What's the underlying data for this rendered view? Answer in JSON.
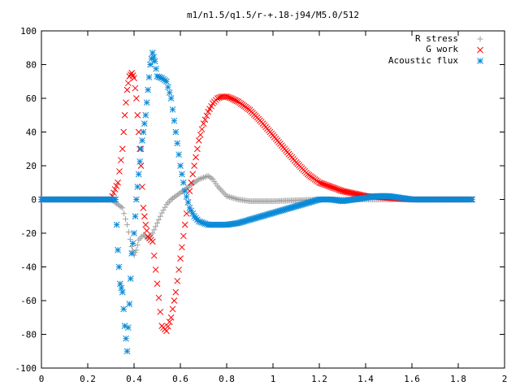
{
  "chart_data": {
    "type": "scatter",
    "title": "m1/n1.5/q1.5/r-+.18-j94/M5.0/512",
    "xlabel": "",
    "ylabel": "",
    "xlim": [
      0,
      2
    ],
    "ylim": [
      -100,
      100
    ],
    "x_ticks": [
      "0",
      "0.2",
      "0.4",
      "0.6",
      "0.8",
      "1",
      "1.2",
      "1.4",
      "1.6",
      "1.8",
      "2"
    ],
    "y_ticks": [
      "100",
      "80",
      "60",
      "40",
      "20",
      "0",
      "-20",
      "-40",
      "-60",
      "-80",
      "-100"
    ],
    "legend_position": "top-right",
    "grid": false,
    "series": [
      {
        "name": "R stress",
        "marker": "+",
        "color": "#a0a0a0",
        "x": [
          0.0,
          0.3,
          0.35,
          0.37,
          0.39,
          0.4,
          0.41,
          0.42,
          0.44,
          0.46,
          0.48,
          0.5,
          0.52,
          0.54,
          0.56,
          0.58,
          0.6,
          0.62,
          0.64,
          0.66,
          0.68,
          0.7,
          0.72,
          0.74,
          0.76,
          0.78,
          0.8,
          0.85,
          0.9,
          1.0,
          1.2,
          1.4,
          1.6,
          1.86
        ],
        "y": [
          0,
          0,
          -5,
          -15,
          -28,
          -33,
          -30,
          -24,
          -21,
          -23,
          -20,
          -14,
          -8,
          -3,
          0,
          2,
          4,
          6,
          8,
          10,
          12,
          13,
          14,
          12,
          8,
          5,
          2,
          0,
          -1,
          -1,
          0,
          0,
          0,
          0
        ]
      },
      {
        "name": "G work",
        "marker": "x",
        "color": "#ff0000",
        "x": [
          0.0,
          0.3,
          0.33,
          0.35,
          0.36,
          0.37,
          0.38,
          0.39,
          0.4,
          0.41,
          0.42,
          0.43,
          0.44,
          0.45,
          0.46,
          0.48,
          0.5,
          0.52,
          0.54,
          0.56,
          0.58,
          0.6,
          0.62,
          0.64,
          0.66,
          0.68,
          0.7,
          0.72,
          0.74,
          0.76,
          0.78,
          0.8,
          0.82,
          0.85,
          0.9,
          0.95,
          1.0,
          1.05,
          1.1,
          1.15,
          1.2,
          1.3,
          1.4,
          1.5,
          1.6,
          1.7,
          1.86
        ],
        "y": [
          0,
          0,
          10,
          30,
          50,
          65,
          73,
          75,
          72,
          60,
          40,
          20,
          -5,
          -15,
          -22,
          -25,
          -50,
          -75,
          -78,
          -70,
          -55,
          -35,
          -15,
          5,
          20,
          35,
          45,
          52,
          57,
          60,
          61,
          61,
          60,
          58,
          53,
          46,
          38,
          30,
          22,
          15,
          10,
          5,
          2,
          1,
          0,
          0,
          0
        ]
      },
      {
        "name": "Acoustic flux",
        "marker": "*",
        "color": "#0a8ad8",
        "x": [
          0.0,
          0.3,
          0.32,
          0.33,
          0.34,
          0.35,
          0.36,
          0.37,
          0.38,
          0.39,
          0.4,
          0.41,
          0.42,
          0.43,
          0.44,
          0.45,
          0.46,
          0.47,
          0.48,
          0.49,
          0.5,
          0.52,
          0.54,
          0.56,
          0.58,
          0.6,
          0.62,
          0.64,
          0.66,
          0.68,
          0.7,
          0.72,
          0.74,
          0.76,
          0.78,
          0.8,
          0.85,
          0.9,
          0.95,
          1.0,
          1.05,
          1.1,
          1.15,
          1.2,
          1.25,
          1.3,
          1.35,
          1.4,
          1.45,
          1.5,
          1.55,
          1.6,
          1.7,
          1.8,
          1.86
        ],
        "y": [
          0,
          0,
          0,
          -30,
          -50,
          -55,
          -75,
          -90,
          -62,
          -32,
          -20,
          0,
          15,
          30,
          40,
          50,
          65,
          80,
          87,
          82,
          73,
          72,
          70,
          60,
          40,
          20,
          5,
          -5,
          -10,
          -13,
          -14,
          -15,
          -15,
          -15,
          -15,
          -15,
          -14,
          -12,
          -10,
          -8,
          -6,
          -4,
          -2,
          0,
          0,
          -1,
          0,
          1,
          2,
          2,
          1,
          0,
          0,
          0,
          0
        ]
      }
    ]
  }
}
